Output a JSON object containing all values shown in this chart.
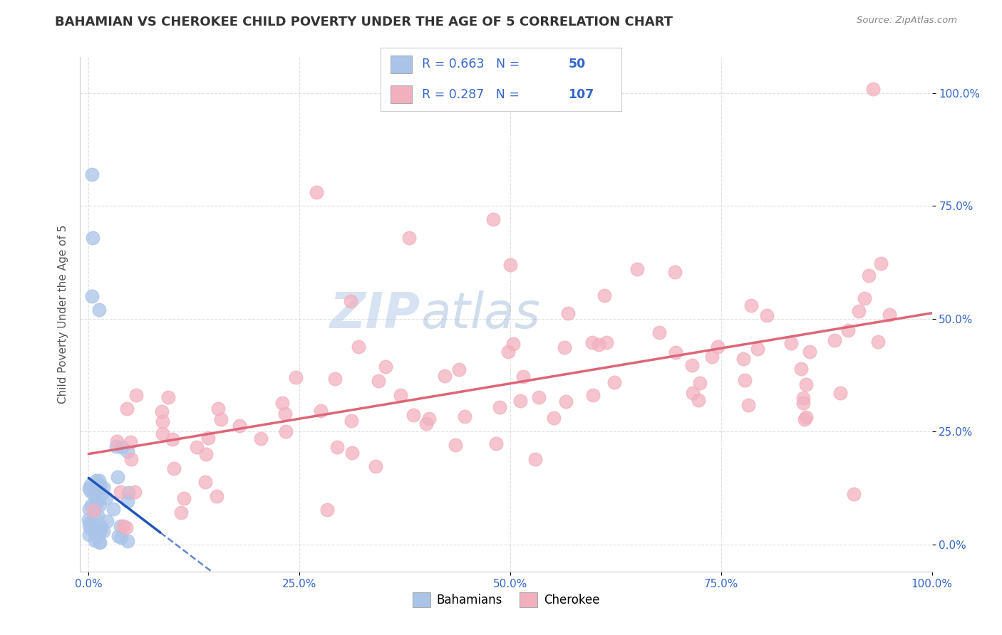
{
  "title": "BAHAMIAN VS CHEROKEE CHILD POVERTY UNDER THE AGE OF 5 CORRELATION CHART",
  "source": "Source: ZipAtlas.com",
  "ylabel": "Child Poverty Under the Age of 5",
  "bahamian_color": "#aac4e8",
  "cherokee_color": "#f2b0bf",
  "bahamian_line_color": "#2255bb",
  "cherokee_line_color": "#dd6677",
  "bahamian_R": 0.663,
  "bahamian_N": 50,
  "cherokee_R": 0.287,
  "cherokee_N": 107,
  "legend_label_1": "Bahamians",
  "legend_label_2": "Cherokee",
  "watermark_zip": "ZIP",
  "watermark_atlas": "atlas",
  "background_color": "#ffffff",
  "grid_color": "#cccccc",
  "title_color": "#333333",
  "axis_tick_color": "#3366cc",
  "legend_text_color": "#3366cc",
  "legend_R_color": "#333333",
  "source_color": "#888888"
}
